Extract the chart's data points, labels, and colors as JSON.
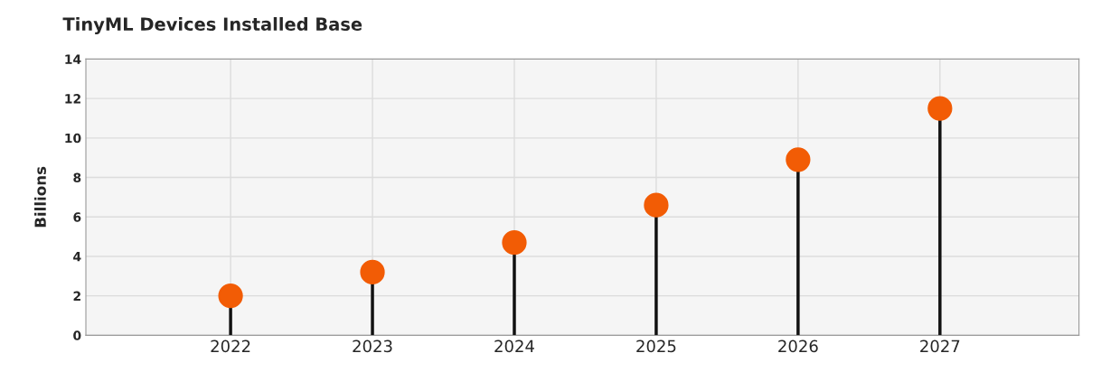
{
  "chart_data": {
    "type": "lollipop",
    "title": "TinyML Devices Installed Base",
    "ylabel": "Billions",
    "categories": [
      "2022",
      "2023",
      "2024",
      "2025",
      "2026",
      "2027"
    ],
    "series": [
      {
        "color": "#f25c05",
        "values": [
          2.0,
          3.2,
          4.7,
          6.6,
          8.9,
          11.5
        ]
      }
    ],
    "ylim": [
      0,
      14
    ],
    "yticks": [
      0,
      2,
      4,
      6,
      8,
      10,
      12,
      14
    ],
    "grid": true,
    "marker": "circle",
    "legend": false
  }
}
